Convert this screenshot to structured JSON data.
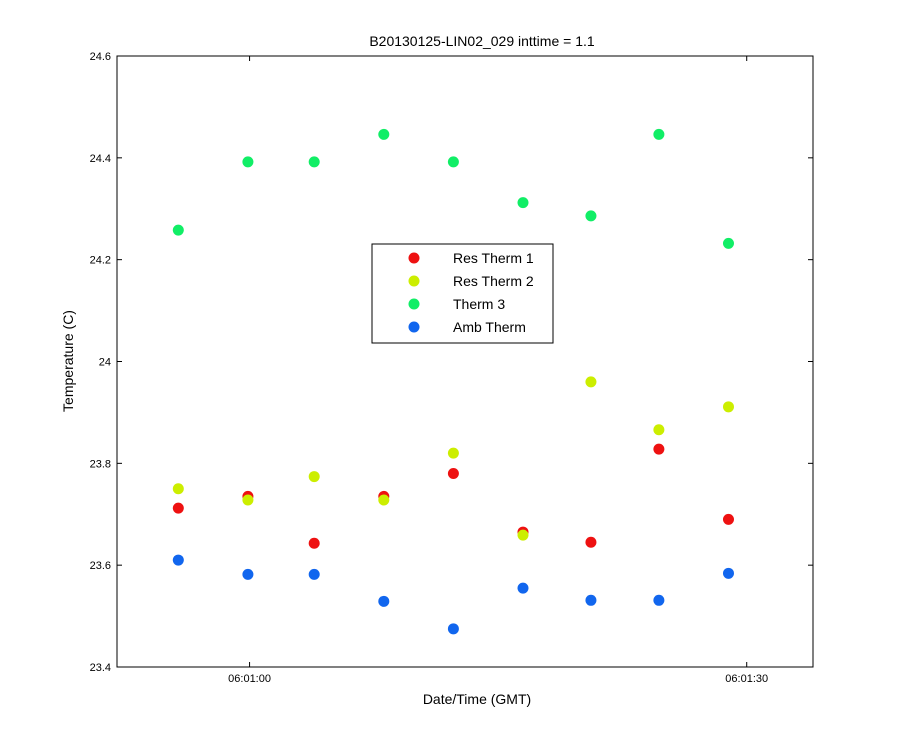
{
  "chart_data": {
    "type": "scatter",
    "title": "B20130125-LIN02_029 inttime = 1.1",
    "xlabel": "Date/Time (GMT)",
    "ylabel": "Temperature (C)",
    "xlim": [
      "06:00:52",
      "06:01:34"
    ],
    "ylim": [
      23.4,
      24.6
    ],
    "x_ticks": [
      "06:01:00",
      "06:01:30"
    ],
    "y_ticks": [
      "23.4",
      "23.6",
      "23.8",
      "24",
      "24.2",
      "24.4",
      "24.6"
    ],
    "grid": false,
    "legend_position": "center",
    "x": [
      "06:00:55.7",
      "06:00:59.9",
      "06:01:03.9",
      "06:01:08.1",
      "06:01:12.3",
      "06:01:16.5",
      "06:01:20.6",
      "06:01:24.7",
      "06:01:28.9"
    ],
    "series": [
      {
        "name": "Res Therm 1",
        "color": "#ee1111",
        "values": [
          23.712,
          23.735,
          23.643,
          23.735,
          23.78,
          23.665,
          23.645,
          23.828,
          23.69
        ]
      },
      {
        "name": "Res Therm 2",
        "color": "#ccee00",
        "values": [
          23.75,
          23.728,
          23.774,
          23.728,
          23.82,
          23.659,
          23.96,
          23.866,
          23.911
        ]
      },
      {
        "name": "Therm 3",
        "color": "#11ee66",
        "values": [
          24.258,
          24.392,
          24.392,
          24.446,
          24.392,
          24.312,
          24.286,
          24.446,
          24.232
        ]
      },
      {
        "name": "Amb Therm",
        "color": "#1166ee",
        "values": [
          23.61,
          23.582,
          23.582,
          23.529,
          23.475,
          23.555,
          23.531,
          23.531,
          23.584
        ]
      }
    ]
  }
}
